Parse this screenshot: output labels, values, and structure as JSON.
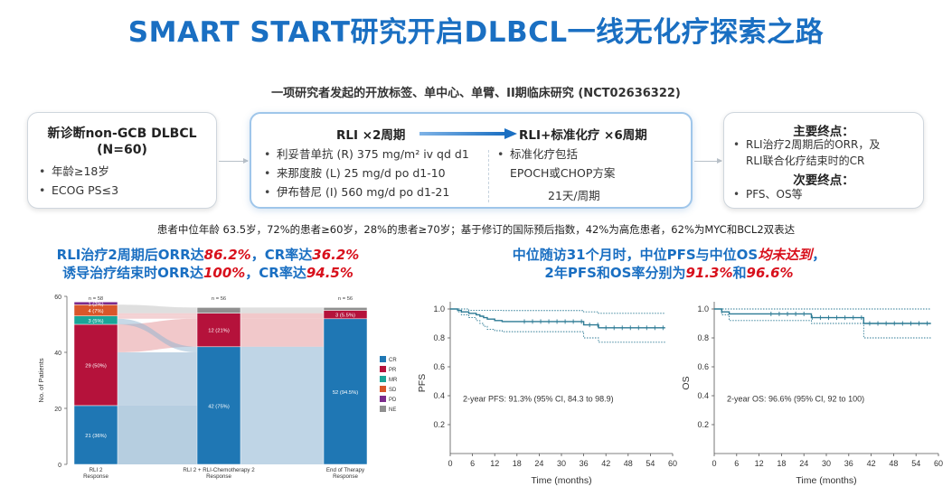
{
  "header": {
    "title": "SMART START研究开启DLBCL一线无化疗探索之路",
    "subtitle": "一项研究者发起的开放标签、单中心、单臂、II期临床研究 (NCT02636322)"
  },
  "population": {
    "title_line1": "新诊断non-GCB DLBCL",
    "title_line2": "(N=60)",
    "bullets": [
      "年龄≥18岁",
      "ECOG PS≤3"
    ]
  },
  "treatment": {
    "rli_heading": "RLI ×2周期",
    "rli_bullets": [
      "利妥昔单抗 (R) 375 mg/m² iv qd d1",
      "来那度胺 (L) 25 mg/d po d1-10",
      "伊布替尼 (I) 560 mg/d po d1-21"
    ],
    "chemo_heading": "RLI+标准化疗 ×6周期",
    "chemo_bullet": "标准化疗包括",
    "chemo_line2": "EPOCH或CHOP方案",
    "chemo_line3": "21天/周期"
  },
  "endpoints": {
    "primary_heading": "主要终点：",
    "primary_bullets": [
      "RLI治疗2周期后的ORR，及",
      "RLI联合化疗结束时的CR"
    ],
    "secondary_heading": "次要终点：",
    "secondary_bullets": [
      "PFS、OS等"
    ]
  },
  "baseline_text": "患者中位年龄 63.5岁，72%的患者≥60岁，28%的患者≥70岁；基于修订的国际预后指数，42%为高危患者，62%为MYC和BCL2双表达",
  "highlights": {
    "left_line1_a": "RLI治疗2周期后ORR达",
    "left_line1_b": "86.2%",
    "left_line1_c": "，CR率达",
    "left_line1_d": "36.2%",
    "left_line2_a": "诱导治疗结束时ORR达",
    "left_line2_b": "100%",
    "left_line2_c": "，CR率达",
    "left_line2_d": "94.5%",
    "right_line1_a": "中位随访31个月时，中位PFS与中位OS",
    "right_line1_b": "均未达到",
    "right_line1_c": "，",
    "right_line2_a": "2年PFS和OS率分别为",
    "right_line2_b": "91.3%",
    "right_line2_c": "和",
    "right_line2_d": "96.6%"
  },
  "chart_data": [
    {
      "type": "bar",
      "subtype": "stacked-alluvial",
      "ylabel": "No. of Patients",
      "ylim": [
        0,
        60
      ],
      "yticks": [
        0,
        20,
        40,
        60
      ],
      "categories": [
        "RLI 2\nResponse",
        "RLI 2 + RLI-Chemotherapy 2\nResponse",
        "End of Therapy\nResponse"
      ],
      "n_labels": [
        "n = 58",
        "n = 56",
        "n = 56"
      ],
      "legend": [
        "CR",
        "PR",
        "MR",
        "SD",
        "PD",
        "NE"
      ],
      "colors": {
        "CR": "#1f77b4",
        "PR": "#b5123b",
        "MR": "#1aa598",
        "SD": "#d9562a",
        "PD": "#7b2a8c",
        "NE": "#8f8f8f"
      },
      "series": [
        {
          "name": "CR",
          "values": [
            21,
            42,
            52
          ]
        },
        {
          "name": "PR",
          "values": [
            29,
            12,
            3
          ]
        },
        {
          "name": "MR",
          "values": [
            3,
            0,
            0
          ]
        },
        {
          "name": "SD",
          "values": [
            4,
            0,
            0
          ]
        },
        {
          "name": "PD",
          "values": [
            1,
            0,
            0
          ]
        },
        {
          "name": "NE",
          "values": [
            0,
            2,
            1
          ]
        }
      ],
      "segment_labels": [
        [
          "21 (36%)",
          "29 (50%)",
          "3 (5%)",
          "4 (7%)",
          "1 (2%)",
          ""
        ],
        [
          "42 (75%)",
          "12 (21%)",
          "",
          "",
          "",
          ""
        ],
        [
          "52 (94.5%)",
          "3 (5.5%)",
          "",
          "",
          "",
          ""
        ]
      ]
    },
    {
      "type": "line",
      "subtype": "kaplan-meier",
      "xlabel": "Time (months)",
      "ylabel": "PFS",
      "xlim": [
        0,
        60
      ],
      "ylim": [
        0,
        1.05
      ],
      "xticks": [
        0,
        6,
        12,
        18,
        24,
        30,
        36,
        42,
        48,
        54,
        60
      ],
      "yticks": [
        0.2,
        0.4,
        0.6,
        0.8,
        1.0
      ],
      "yticklabels": [
        "0.2",
        "0.4",
        "0.6",
        "0.8",
        "1.0"
      ],
      "annotation": "2-year PFS: 91.3% (95% CI, 84.3 to 98.9)",
      "x": [
        0,
        2,
        3,
        5,
        7,
        8,
        9,
        10,
        12,
        14,
        20,
        26,
        36,
        40,
        58
      ],
      "y": [
        1.0,
        0.99,
        0.98,
        0.97,
        0.96,
        0.95,
        0.94,
        0.93,
        0.92,
        0.913,
        0.913,
        0.913,
        0.89,
        0.87,
        0.87
      ],
      "upper": [
        1.0,
        1.0,
        1.0,
        0.99,
        0.99,
        0.99,
        0.99,
        0.99,
        0.99,
        0.989,
        0.989,
        0.989,
        0.98,
        0.97,
        0.97
      ],
      "lower": [
        1.0,
        0.98,
        0.96,
        0.94,
        0.92,
        0.9,
        0.88,
        0.86,
        0.85,
        0.843,
        0.843,
        0.843,
        0.8,
        0.77,
        0.77
      ]
    },
    {
      "type": "line",
      "subtype": "kaplan-meier",
      "xlabel": "Time (months)",
      "ylabel": "OS",
      "xlim": [
        0,
        60
      ],
      "ylim": [
        0,
        1.05
      ],
      "xticks": [
        0,
        6,
        12,
        18,
        24,
        30,
        36,
        42,
        48,
        54,
        60
      ],
      "yticks": [
        0.2,
        0.4,
        0.6,
        0.8,
        1.0
      ],
      "yticklabels": [
        "0.2",
        "0.4",
        "0.6",
        "0.8",
        "1.0"
      ],
      "annotation": "2-year OS: 96.6% (95% CI, 92 to 100)",
      "x": [
        0,
        2,
        4,
        26,
        40,
        58
      ],
      "y": [
        1.0,
        0.98,
        0.966,
        0.94,
        0.9,
        0.9
      ],
      "upper": [
        1.0,
        1.0,
        1.0,
        1.0,
        1.0,
        1.0
      ],
      "lower": [
        1.0,
        0.96,
        0.92,
        0.9,
        0.8,
        0.8
      ]
    }
  ]
}
